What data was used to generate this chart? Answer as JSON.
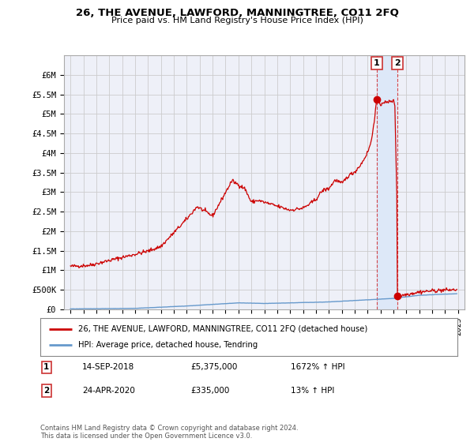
{
  "title": "26, THE AVENUE, LAWFORD, MANNINGTREE, CO11 2FQ",
  "subtitle": "Price paid vs. HM Land Registry's House Price Index (HPI)",
  "legend_line1": "26, THE AVENUE, LAWFORD, MANNINGTREE, CO11 2FQ (detached house)",
  "legend_line2": "HPI: Average price, detached house, Tendring",
  "annotation1_label": "1",
  "annotation1_date": "14-SEP-2018",
  "annotation1_price": "£5,375,000",
  "annotation1_hpi": "1672% ↑ HPI",
  "annotation2_label": "2",
  "annotation2_date": "24-APR-2020",
  "annotation2_price": "£335,000",
  "annotation2_hpi": "13% ↑ HPI",
  "footnote": "Contains HM Land Registry data © Crown copyright and database right 2024.\nThis data is licensed under the Open Government Licence v3.0.",
  "red_color": "#cc0000",
  "blue_color": "#6699cc",
  "highlight_color": "#dde8f8",
  "background_color": "#ffffff",
  "plot_bg_color": "#eef0f8",
  "grid_color": "#cccccc",
  "point1_x": 2018.71,
  "point1_y": 5375000,
  "point2_x": 2020.3,
  "point2_y": 335000,
  "ylim": [
    0,
    6500000
  ],
  "xlim": [
    1994.5,
    2025.5
  ],
  "yticks": [
    0,
    500000,
    1000000,
    1500000,
    2000000,
    2500000,
    3000000,
    3500000,
    4000000,
    4500000,
    5000000,
    5500000,
    6000000
  ],
  "ytick_labels": [
    "£0",
    "£500K",
    "£1M",
    "£1.5M",
    "£2M",
    "£2.5M",
    "£3M",
    "£3.5M",
    "£4M",
    "£4.5M",
    "£5M",
    "£5.5M",
    "£6M"
  ],
  "xticks": [
    1995,
    1996,
    1997,
    1998,
    1999,
    2000,
    2001,
    2002,
    2003,
    2004,
    2005,
    2006,
    2007,
    2008,
    2009,
    2010,
    2011,
    2012,
    2013,
    2014,
    2015,
    2016,
    2017,
    2018,
    2019,
    2020,
    2021,
    2022,
    2023,
    2024,
    2025
  ]
}
